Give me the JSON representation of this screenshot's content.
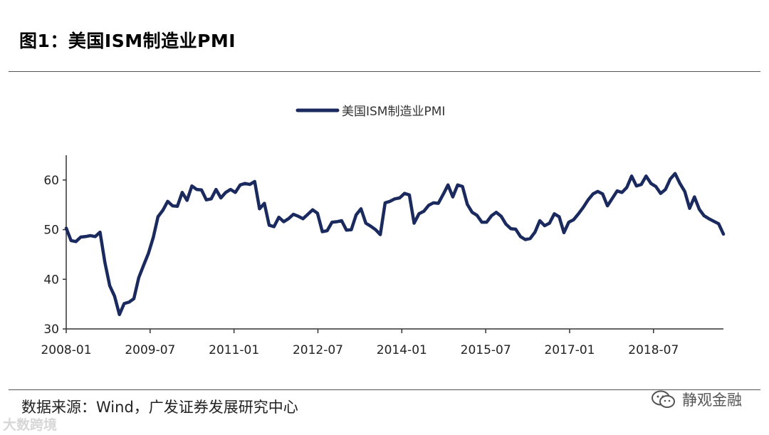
{
  "header": {
    "title": "图1：美国ISM制造业PMI"
  },
  "footer": {
    "source": "数据来源：Wind，广发证券发展研究中心",
    "watermark_right": "静观金融",
    "watermark_left": "大数跨境"
  },
  "colors": {
    "series": "#1b2a5e",
    "axis": "#333333"
  },
  "chart_data": {
    "type": "line",
    "title": "美国ISM制造业PMI",
    "legend_position": "top-center",
    "xlabel": "",
    "ylabel": "",
    "ylim": [
      30,
      65
    ],
    "yticks": [
      30,
      40,
      50,
      60
    ],
    "xticks": [
      "2008-01",
      "2009-07",
      "2011-01",
      "2012-07",
      "2014-01",
      "2015-07",
      "2017-01",
      "2018-07"
    ],
    "x_start": "2008-01",
    "x_end": "2019-10",
    "series": [
      {
        "name": "美国ISM制造业PMI",
        "values": [
          50.3,
          47.8,
          47.6,
          48.5,
          48.6,
          48.8,
          48.6,
          49.5,
          43.4,
          38.7,
          36.6,
          32.9,
          35.1,
          35.4,
          36.1,
          40.3,
          42.8,
          45.2,
          48.4,
          52.6,
          53.9,
          55.7,
          54.8,
          54.7,
          57.5,
          55.9,
          58.8,
          58.1,
          58.0,
          56.0,
          56.2,
          58.1,
          56.4,
          57.5,
          58.1,
          57.5,
          59.0,
          59.3,
          59.1,
          59.7,
          54.2,
          55.3,
          50.9,
          50.6,
          52.5,
          51.6,
          52.2,
          53.1,
          52.7,
          52.2,
          53.1,
          54.0,
          53.3,
          49.6,
          49.8,
          51.5,
          51.6,
          51.8,
          49.9,
          50.0,
          53.0,
          54.2,
          51.3,
          50.7,
          50.0,
          49.0,
          55.4,
          55.7,
          56.2,
          56.4,
          57.3,
          57.0,
          51.3,
          53.2,
          53.7,
          54.9,
          55.4,
          55.3,
          57.1,
          59.0,
          56.6,
          59.0,
          58.7,
          55.1,
          53.5,
          52.9,
          51.5,
          51.5,
          52.8,
          53.5,
          52.7,
          51.1,
          50.2,
          50.1,
          48.6,
          48.0,
          48.2,
          49.5,
          51.8,
          50.8,
          51.3,
          53.2,
          52.6,
          49.4,
          51.5,
          52.0,
          53.2,
          54.5,
          56.0,
          57.2,
          57.7,
          57.2,
          54.8,
          56.3,
          57.8,
          57.5,
          58.5,
          60.8,
          58.8,
          59.1,
          60.8,
          59.3,
          58.7,
          57.3,
          58.1,
          60.2,
          61.3,
          59.3,
          57.7,
          54.3,
          56.6,
          54.1,
          52.8,
          52.2,
          51.7,
          51.2,
          49.1
        ]
      }
    ]
  }
}
